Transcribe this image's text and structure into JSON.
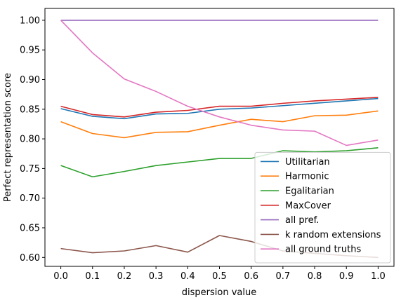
{
  "chart_data": {
    "type": "line",
    "xlabel": "dispersion value",
    "ylabel": "Perfect representation score",
    "xlim": [
      -0.05,
      1.05
    ],
    "ylim": [
      0.585,
      1.02
    ],
    "xticks": [
      "0.0",
      "0.1",
      "0.2",
      "0.3",
      "0.4",
      "0.5",
      "0.6",
      "0.7",
      "0.8",
      "0.9",
      "1.0"
    ],
    "yticks": [
      "0.60",
      "0.65",
      "0.70",
      "0.75",
      "0.80",
      "0.85",
      "0.90",
      "0.95",
      "1.00"
    ],
    "grid": false,
    "legend_position": "lower-right",
    "x": [
      0.0,
      0.1,
      0.2,
      0.3,
      0.4,
      0.5,
      0.6,
      0.7,
      0.8,
      0.9,
      1.0
    ],
    "series": [
      {
        "name": "Utilitarian",
        "color": "#1f77b4",
        "values": [
          0.851,
          0.838,
          0.834,
          0.842,
          0.843,
          0.85,
          0.852,
          0.856,
          0.86,
          0.864,
          0.868
        ]
      },
      {
        "name": "Harmonic",
        "color": "#ff7f0e",
        "values": [
          0.829,
          0.809,
          0.802,
          0.811,
          0.812,
          0.823,
          0.833,
          0.829,
          0.839,
          0.84,
          0.847
        ]
      },
      {
        "name": "Egalitarian",
        "color": "#2ca02c",
        "values": [
          0.755,
          0.736,
          0.745,
          0.755,
          0.761,
          0.767,
          0.767,
          0.78,
          0.778,
          0.78,
          0.785
        ]
      },
      {
        "name": "MaxCover",
        "color": "#d62728",
        "values": [
          0.855,
          0.841,
          0.837,
          0.845,
          0.848,
          0.855,
          0.855,
          0.86,
          0.864,
          0.867,
          0.87
        ]
      },
      {
        "name": "all pref.",
        "color": "#9467bd",
        "values": [
          1.0,
          1.0,
          1.0,
          1.0,
          1.0,
          1.0,
          1.0,
          1.0,
          1.0,
          1.0,
          1.0
        ]
      },
      {
        "name": "k random extensions",
        "color": "#8c564b",
        "values": [
          0.615,
          0.608,
          0.611,
          0.62,
          0.609,
          0.637,
          0.627,
          0.611,
          0.607,
          0.603,
          0.6
        ]
      },
      {
        "name": "all ground truths",
        "color": "#e377c2",
        "values": [
          1.0,
          0.945,
          0.901,
          0.88,
          0.855,
          0.837,
          0.823,
          0.815,
          0.813,
          0.789,
          0.798
        ]
      }
    ]
  }
}
